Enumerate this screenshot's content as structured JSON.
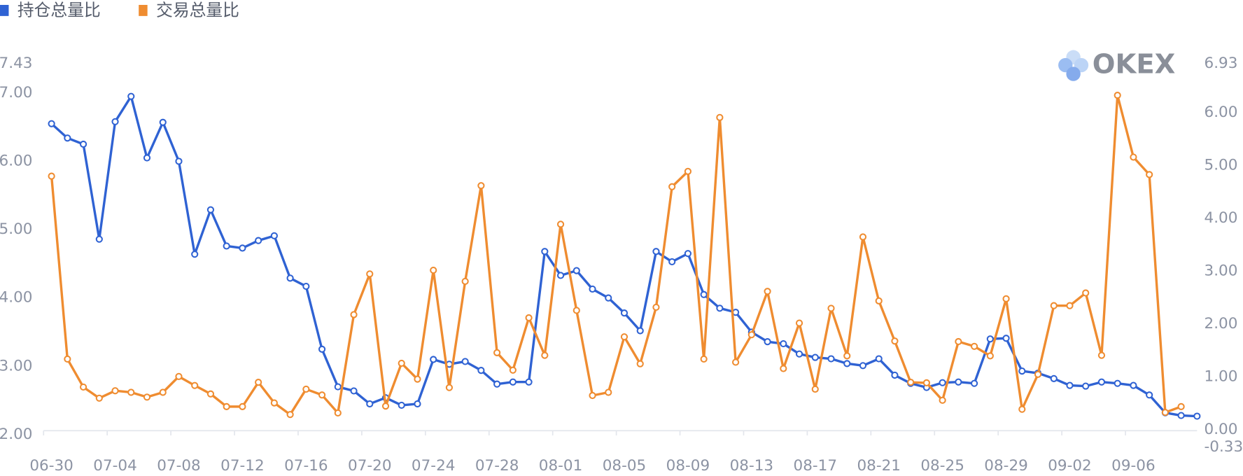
{
  "chart_data": {
    "type": "line",
    "watermark": "OKEX",
    "categories": [
      "06-30",
      null,
      null,
      null,
      "07-04",
      null,
      null,
      null,
      "07-08",
      null,
      null,
      null,
      "07-12",
      null,
      null,
      null,
      "07-16",
      null,
      null,
      null,
      "07-20",
      null,
      null,
      null,
      "07-24",
      null,
      null,
      null,
      "07-28",
      null,
      null,
      null,
      "08-01",
      null,
      null,
      null,
      "08-05",
      null,
      null,
      null,
      "08-09",
      null,
      null,
      null,
      "08-13",
      null,
      null,
      null,
      "08-17",
      null,
      null,
      null,
      "08-21",
      null,
      null,
      null,
      "08-25",
      null,
      null,
      null,
      "08-29",
      null,
      null,
      null,
      "09-02",
      null,
      null,
      null,
      "09-06",
      null,
      null,
      null,
      null
    ],
    "series": [
      {
        "name": "持仓总量比",
        "color": "#2f62d3",
        "axis": "y",
        "values": [
          6.55,
          6.34,
          6.25,
          4.86,
          6.58,
          6.95,
          6.05,
          6.57,
          6.0,
          4.64,
          5.29,
          4.76,
          4.73,
          4.84,
          4.91,
          4.29,
          4.17,
          3.25,
          2.7,
          2.64,
          2.45,
          2.54,
          2.43,
          2.45,
          3.1,
          3.03,
          3.07,
          2.94,
          2.74,
          2.77,
          2.77,
          4.68,
          4.33,
          4.4,
          4.13,
          4.0,
          3.78,
          3.52,
          4.68,
          4.53,
          4.65,
          4.05,
          3.85,
          3.79,
          3.5,
          3.36,
          3.33,
          3.18,
          3.13,
          3.11,
          3.04,
          3.01,
          3.11,
          2.87,
          2.75,
          2.69,
          2.76,
          2.77,
          2.75,
          3.4,
          3.41,
          2.93,
          2.9,
          2.82,
          2.72,
          2.71,
          2.77,
          2.75,
          2.72,
          2.58,
          2.32,
          2.28,
          2.27
        ]
      },
      {
        "name": "交易总量比",
        "color": "#ef8c30",
        "axis": "y2",
        "values": [
          4.8,
          1.34,
          0.81,
          0.6,
          0.74,
          0.71,
          0.62,
          0.71,
          1.01,
          0.84,
          0.68,
          0.44,
          0.44,
          0.9,
          0.51,
          0.29,
          0.77,
          0.66,
          0.32,
          2.18,
          2.95,
          0.45,
          1.26,
          0.96,
          3.02,
          0.8,
          2.81,
          4.62,
          1.46,
          1.13,
          2.12,
          1.41,
          3.89,
          2.26,
          0.65,
          0.71,
          1.76,
          1.25,
          2.32,
          4.6,
          4.89,
          1.34,
          5.91,
          1.28,
          1.8,
          2.62,
          1.16,
          2.02,
          0.77,
          2.3,
          1.4,
          3.65,
          2.44,
          1.68,
          0.9,
          0.89,
          0.56,
          1.67,
          1.58,
          1.4,
          2.48,
          0.39,
          1.05,
          2.35,
          2.35,
          2.59,
          1.41,
          6.33,
          5.16,
          4.83,
          0.33,
          0.44,
          null
        ]
      }
    ],
    "ylim": [
      2,
      7.43
    ],
    "yticks": [
      {
        "value": 2,
        "label": "2.00"
      },
      {
        "value": 3,
        "label": "3.00"
      },
      {
        "value": 4,
        "label": "4.00"
      },
      {
        "value": 5,
        "label": "5.00"
      },
      {
        "value": 6,
        "label": "6.00"
      },
      {
        "value": 7,
        "label": "7.00"
      },
      7.43
    ],
    "y2lim": [
      -0.33,
      6.93
    ],
    "y2ticks": [
      -0.33,
      {
        "value": 0,
        "label": "0.00"
      },
      {
        "value": 1,
        "label": "1.00"
      },
      {
        "value": 2,
        "label": "2.00"
      },
      {
        "value": 3,
        "label": "3.00"
      },
      {
        "value": 4,
        "label": "4.00"
      },
      {
        "value": 5,
        "label": "5.00"
      },
      {
        "value": 6,
        "label": "6.00"
      },
      6.93
    ],
    "legend": "top-left"
  }
}
